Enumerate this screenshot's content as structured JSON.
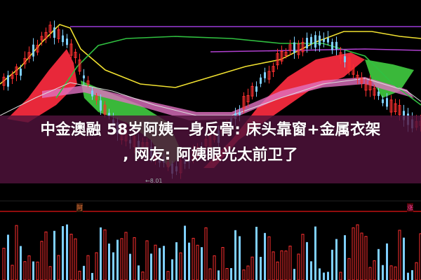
{
  "headline": {
    "line1": "中金澳融 58岁阿姨一身反骨: 床头靠窗+金属衣架",
    "line2": ", 网友: 阿姨眼光太前卫了"
  },
  "chart_data": {
    "type": "candlestick",
    "annotations": {
      "low_price": "←8.01"
    },
    "indicator_labels": [
      "阿",
      "涨"
    ],
    "colors": {
      "up": "#ff3030",
      "down": "#7fd0ff",
      "ribbon_up": "#e8283a",
      "ribbon_down": "#3ec23e",
      "ma_yellow": "#f0e030",
      "ma_purple": "#9a3ad8",
      "ma_green": "#30c040",
      "band": "#50123c"
    }
  }
}
